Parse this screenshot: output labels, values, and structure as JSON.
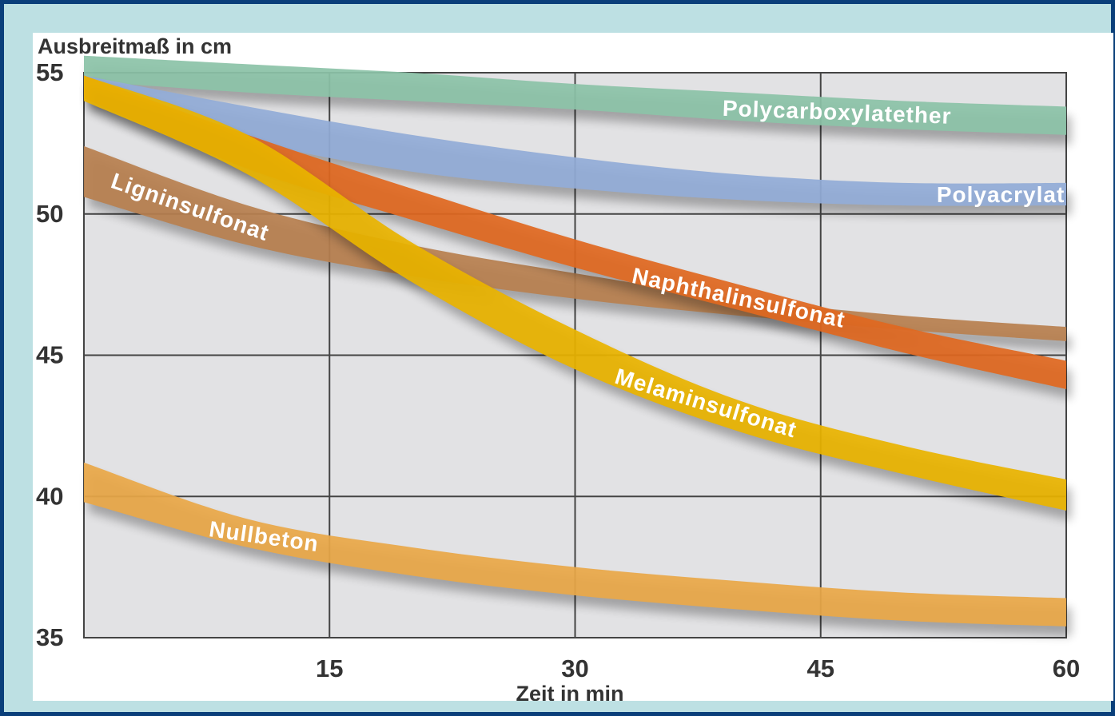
{
  "chart_data": {
    "type": "area",
    "ylabel": "Ausbreitmaß in cm",
    "xlabel": "Zeit in min",
    "xlim": [
      0,
      60
    ],
    "ylim": [
      35,
      55
    ],
    "xticks": [
      15,
      30,
      45,
      60
    ],
    "yticks": [
      35,
      40,
      45,
      50,
      55
    ],
    "grid": true,
    "series": [
      {
        "name": "Polycarboxylatether",
        "color": "#8cc3a8",
        "x": [
          0,
          10,
          20,
          30,
          40,
          50,
          60
        ],
        "low": [
          54.7,
          54.3,
          54.0,
          53.7,
          53.3,
          53.0,
          52.8
        ],
        "high": [
          55.6,
          55.3,
          55.0,
          54.6,
          54.3,
          54.0,
          53.8
        ]
      },
      {
        "name": "Polyacrylat",
        "color": "#92acd7",
        "x": [
          0,
          10,
          20,
          30,
          40,
          50,
          60
        ],
        "low": [
          54.3,
          52.6,
          51.5,
          50.9,
          50.5,
          50.3,
          50.3
        ],
        "high": [
          54.9,
          53.8,
          52.8,
          52.0,
          51.4,
          51.1,
          51.1
        ]
      },
      {
        "name": "Ligninsulfonat",
        "color": "#b88050",
        "x": [
          0,
          10,
          20,
          30,
          40,
          50,
          60
        ],
        "low": [
          50.6,
          48.9,
          47.8,
          47.0,
          46.4,
          45.9,
          45.5
        ],
        "high": [
          52.4,
          50.3,
          48.9,
          47.9,
          47.0,
          46.4,
          46.0
        ]
      },
      {
        "name": "Naphthalinsulfonat",
        "color": "#e06820",
        "x": [
          0,
          10,
          20,
          30,
          40,
          50,
          60
        ],
        "low": [
          54.1,
          51.6,
          49.8,
          48.1,
          46.6,
          45.1,
          43.8
        ],
        "high": [
          54.9,
          52.8,
          50.9,
          49.1,
          47.5,
          46.0,
          44.8
        ]
      },
      {
        "name": "Melaminsulfonat",
        "color": "#eab400",
        "x": [
          0,
          10,
          20,
          30,
          40,
          50,
          60
        ],
        "low": [
          54.0,
          51.4,
          47.6,
          44.5,
          42.3,
          40.8,
          39.5
        ],
        "high": [
          54.9,
          52.8,
          49.0,
          45.9,
          43.4,
          41.8,
          40.6
        ]
      },
      {
        "name": "Nullbeton",
        "color": "#eaa848",
        "x": [
          0,
          10,
          20,
          30,
          40,
          50,
          60
        ],
        "low": [
          39.8,
          38.2,
          37.2,
          36.5,
          36.0,
          35.6,
          35.4
        ],
        "high": [
          41.2,
          39.2,
          38.2,
          37.5,
          37.0,
          36.6,
          36.4
        ]
      }
    ]
  }
}
